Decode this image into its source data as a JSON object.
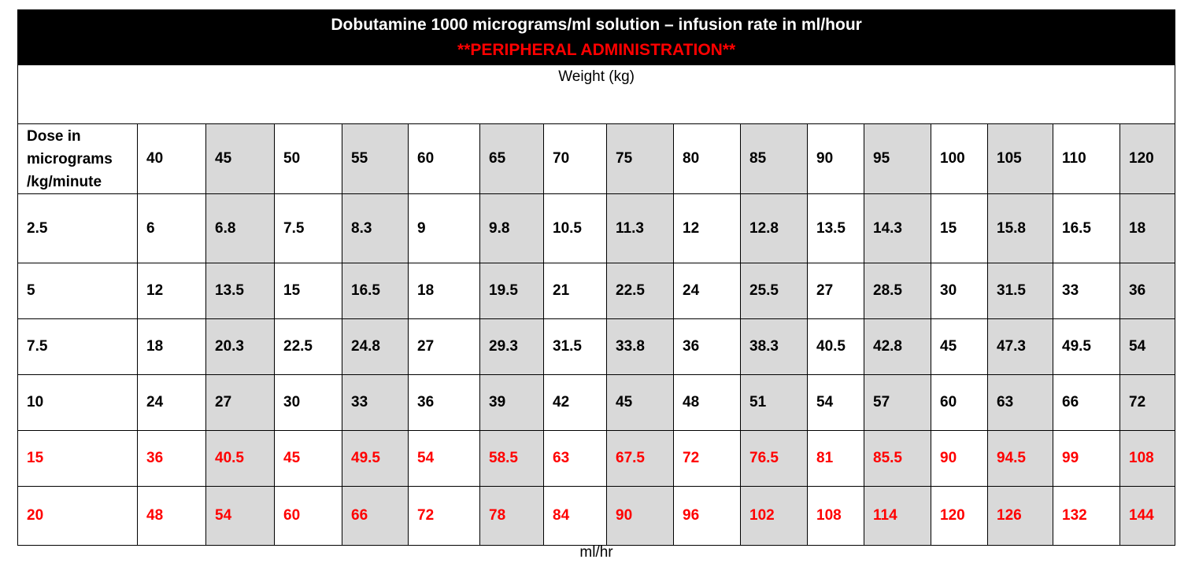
{
  "title": "Dobutamine 1000 micrograms/ml solution – infusion rate in ml/hour",
  "subtitle": "**PERIPHERAL ADMINISTRATION**",
  "weight_label": "Weight (kg)",
  "dose_header": "Dose in micrograms /kg/minute",
  "weights": [
    "40",
    "45",
    "50",
    "55",
    "60",
    "65",
    "70",
    "75",
    "80",
    "85",
    "90",
    "95",
    "100",
    "105",
    "110",
    "120"
  ],
  "shaded_columns": [
    "45",
    "55",
    "65",
    "75",
    "85",
    "95",
    "105",
    "120"
  ],
  "shade_color": "#d9d9d9",
  "highlight_color": "#ff0000",
  "rows": [
    {
      "dose": "2.5",
      "values": [
        "6",
        "6.8",
        "7.5",
        "8.3",
        "9",
        "9.8",
        "10.5",
        "11.3",
        "12",
        "12.8",
        "13.5",
        "14.3",
        "15",
        "15.8",
        "16.5",
        "18"
      ],
      "highlight": false
    },
    {
      "dose": "5",
      "values": [
        "12",
        "13.5",
        "15",
        "16.5",
        "18",
        "19.5",
        "21",
        "22.5",
        "24",
        "25.5",
        "27",
        "28.5",
        "30",
        "31.5",
        "33",
        "36"
      ],
      "highlight": false
    },
    {
      "dose": "7.5",
      "values": [
        "18",
        "20.3",
        "22.5",
        "24.8",
        "27",
        "29.3",
        "31.5",
        "33.8",
        "36",
        "38.3",
        "40.5",
        "42.8",
        "45",
        "47.3",
        "49.5",
        "54"
      ],
      "highlight": false
    },
    {
      "dose": "10",
      "values": [
        "24",
        "27",
        "30",
        "33",
        "36",
        "39",
        "42",
        "45",
        "48",
        "51",
        "54",
        "57",
        "60",
        "63",
        "66",
        "72"
      ],
      "highlight": false
    },
    {
      "dose": "15",
      "values": [
        "36",
        "40.5",
        "45",
        "49.5",
        "54",
        "58.5",
        "63",
        "67.5",
        "72",
        "76.5",
        "81",
        "85.5",
        "90",
        "94.5",
        "99",
        "108"
      ],
      "highlight": true
    },
    {
      "dose": "20",
      "values": [
        "48",
        "54",
        "60",
        "66",
        "72",
        "78",
        "84",
        "90",
        "96",
        "102",
        "108",
        "114",
        "120",
        "126",
        "132",
        "144"
      ],
      "highlight": true
    }
  ],
  "unit_label": "ml/hr"
}
